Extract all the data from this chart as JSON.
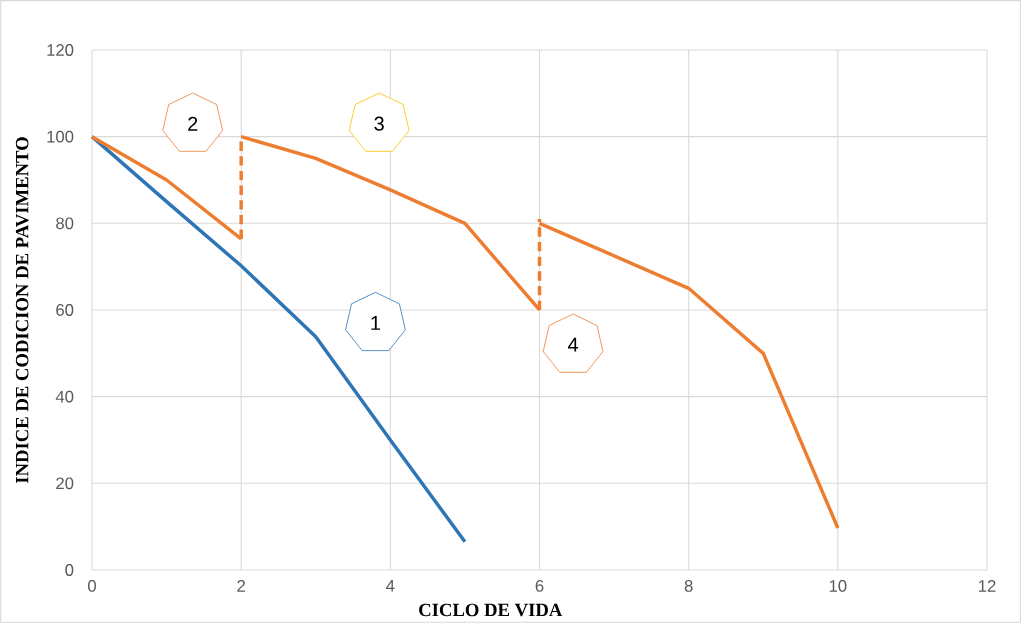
{
  "chart_data": {
    "type": "line",
    "xlabel": "CICLO DE VIDA",
    "ylabel": "INDICE DE CODICION DE PAVIMENTO",
    "xlim": [
      0,
      12
    ],
    "xticks": [
      0,
      2,
      4,
      6,
      8,
      10,
      12
    ],
    "ylim": [
      0,
      120
    ],
    "yticks": [
      0,
      20,
      40,
      60,
      80,
      100,
      120
    ],
    "grid": true,
    "marker": "none",
    "line_style": "solid",
    "series": [
      {
        "color": "#2e75b6",
        "x": [
          0,
          1,
          2,
          3,
          4,
          5
        ],
        "values": [
          100,
          85,
          70.2,
          53.8,
          30,
          6.5
        ]
      },
      {
        "color": "#ed7d31",
        "x": [
          0,
          1,
          2
        ],
        "values": [
          100,
          90,
          76.4
        ]
      },
      {
        "color": "#ed7d31",
        "x": [
          2,
          2
        ],
        "values": [
          76.4,
          100
        ],
        "line_style": "dashed"
      },
      {
        "color": "#ed7d31",
        "x": [
          2,
          3,
          4,
          5,
          6
        ],
        "values": [
          100,
          95,
          87.7,
          80,
          60
        ]
      },
      {
        "color": "#ed7d31",
        "x": [
          6,
          6
        ],
        "values": [
          60,
          81
        ],
        "line_style": "dashed"
      },
      {
        "color": "#ed7d31",
        "x": [
          6,
          8,
          9,
          10
        ],
        "values": [
          80,
          65,
          50,
          9.7
        ]
      }
    ],
    "annotations": [
      "1",
      "2",
      "3",
      "4"
    ]
  }
}
